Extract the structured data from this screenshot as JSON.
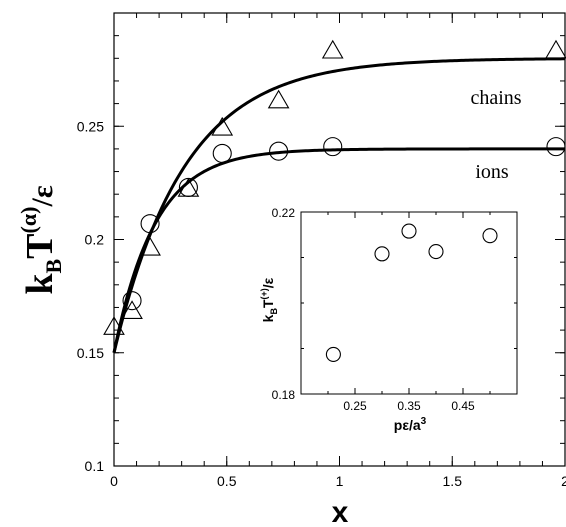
{
  "chart_data": [
    {
      "type": "scatter",
      "xlabel": "x",
      "ylabel": {
        "k": "k",
        "sub": "B",
        "T": "T",
        "sup": "(α)",
        "tail": "/ε"
      },
      "xlim": [
        0,
        2
      ],
      "ylim": [
        0.1,
        0.3
      ],
      "xticks": [
        0,
        0.5,
        1,
        1.5,
        2
      ],
      "xtick_labels": [
        "0",
        "0.5",
        "1",
        "1.5",
        "2"
      ],
      "yticks": [
        0.1,
        0.15,
        0.2,
        0.25
      ],
      "ytick_labels": [
        "0.1",
        "0.15",
        "0.2",
        "0.25"
      ],
      "grid": false,
      "series": [
        {
          "name": "chains",
          "marker": "triangle",
          "points": [
            [
              0,
              0.161
            ],
            [
              0.08,
              0.168
            ],
            [
              0.16,
              0.196
            ],
            [
              0.33,
              0.222
            ],
            [
              0.48,
              0.249
            ],
            [
              0.73,
              0.261
            ],
            [
              0.97,
              0.283
            ],
            [
              1.96,
              0.283
            ]
          ],
          "fit": {
            "a": 0.28,
            "b": 0.13,
            "k": 3.2
          }
        },
        {
          "name": "ions",
          "marker": "circle",
          "points": [
            [
              0.08,
              0.173
            ],
            [
              0.16,
              0.207
            ],
            [
              0.33,
              0.223
            ],
            [
              0.48,
              0.238
            ],
            [
              0.73,
              0.239
            ],
            [
              0.97,
              0.241
            ],
            [
              1.96,
              0.241
            ]
          ],
          "fit": {
            "a": 0.24,
            "b": 0.09,
            "k": 5.5
          }
        }
      ]
    },
    {
      "type": "scatter",
      "xlabel": {
        "main": "pε/a",
        "sup": "3"
      },
      "ylabel": {
        "k": "k",
        "sub": "B",
        "T": "T",
        "sup": "(+)",
        "tail": "/ε"
      },
      "xlim": [
        0.15,
        0.55
      ],
      "ylim": [
        0.18,
        0.22
      ],
      "xticks": [
        0.25,
        0.35,
        0.45
      ],
      "xtick_labels": [
        "0.25",
        "0.35",
        "0.45"
      ],
      "yticks": [
        0.18,
        0.22
      ],
      "ytick_labels": [
        "0.18",
        "0.22"
      ],
      "grid": false,
      "series": [
        {
          "marker": "circle",
          "points": [
            [
              0.21,
              0.1887
            ],
            [
              0.3,
              0.2108
            ],
            [
              0.35,
              0.2158
            ],
            [
              0.4,
              0.2113
            ],
            [
              0.5,
              0.2148
            ]
          ]
        }
      ]
    }
  ]
}
